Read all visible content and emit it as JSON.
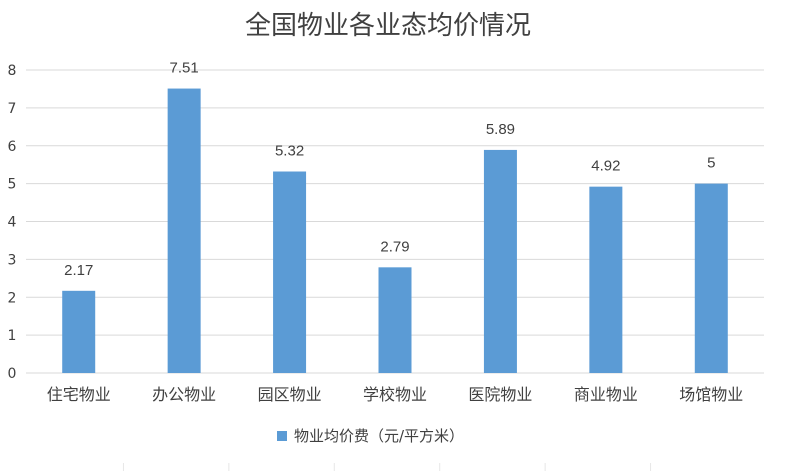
{
  "chart_data": {
    "type": "bar",
    "title": "全国物业各业态均价情况",
    "categories": [
      "住宅物业",
      "办公物业",
      "园区物业",
      "学校物业",
      "医院物业",
      "商业物业",
      "场馆物业"
    ],
    "series": [
      {
        "name": "物业均价费（元/平方米）",
        "values": [
          2.17,
          7.51,
          5.32,
          2.79,
          5.89,
          4.92,
          5
        ],
        "data_labels": [
          "2.17",
          "7.51",
          "5.32",
          "2.79",
          "5.89",
          "4.92",
          "5"
        ],
        "color": "#5b9bd5"
      }
    ],
    "ylim": [
      0,
      8
    ],
    "yticks": [
      0,
      1,
      2,
      3,
      4,
      5,
      6,
      7,
      8
    ],
    "grid": true,
    "legend_position": "bottom",
    "xlabel": "",
    "ylabel": ""
  }
}
